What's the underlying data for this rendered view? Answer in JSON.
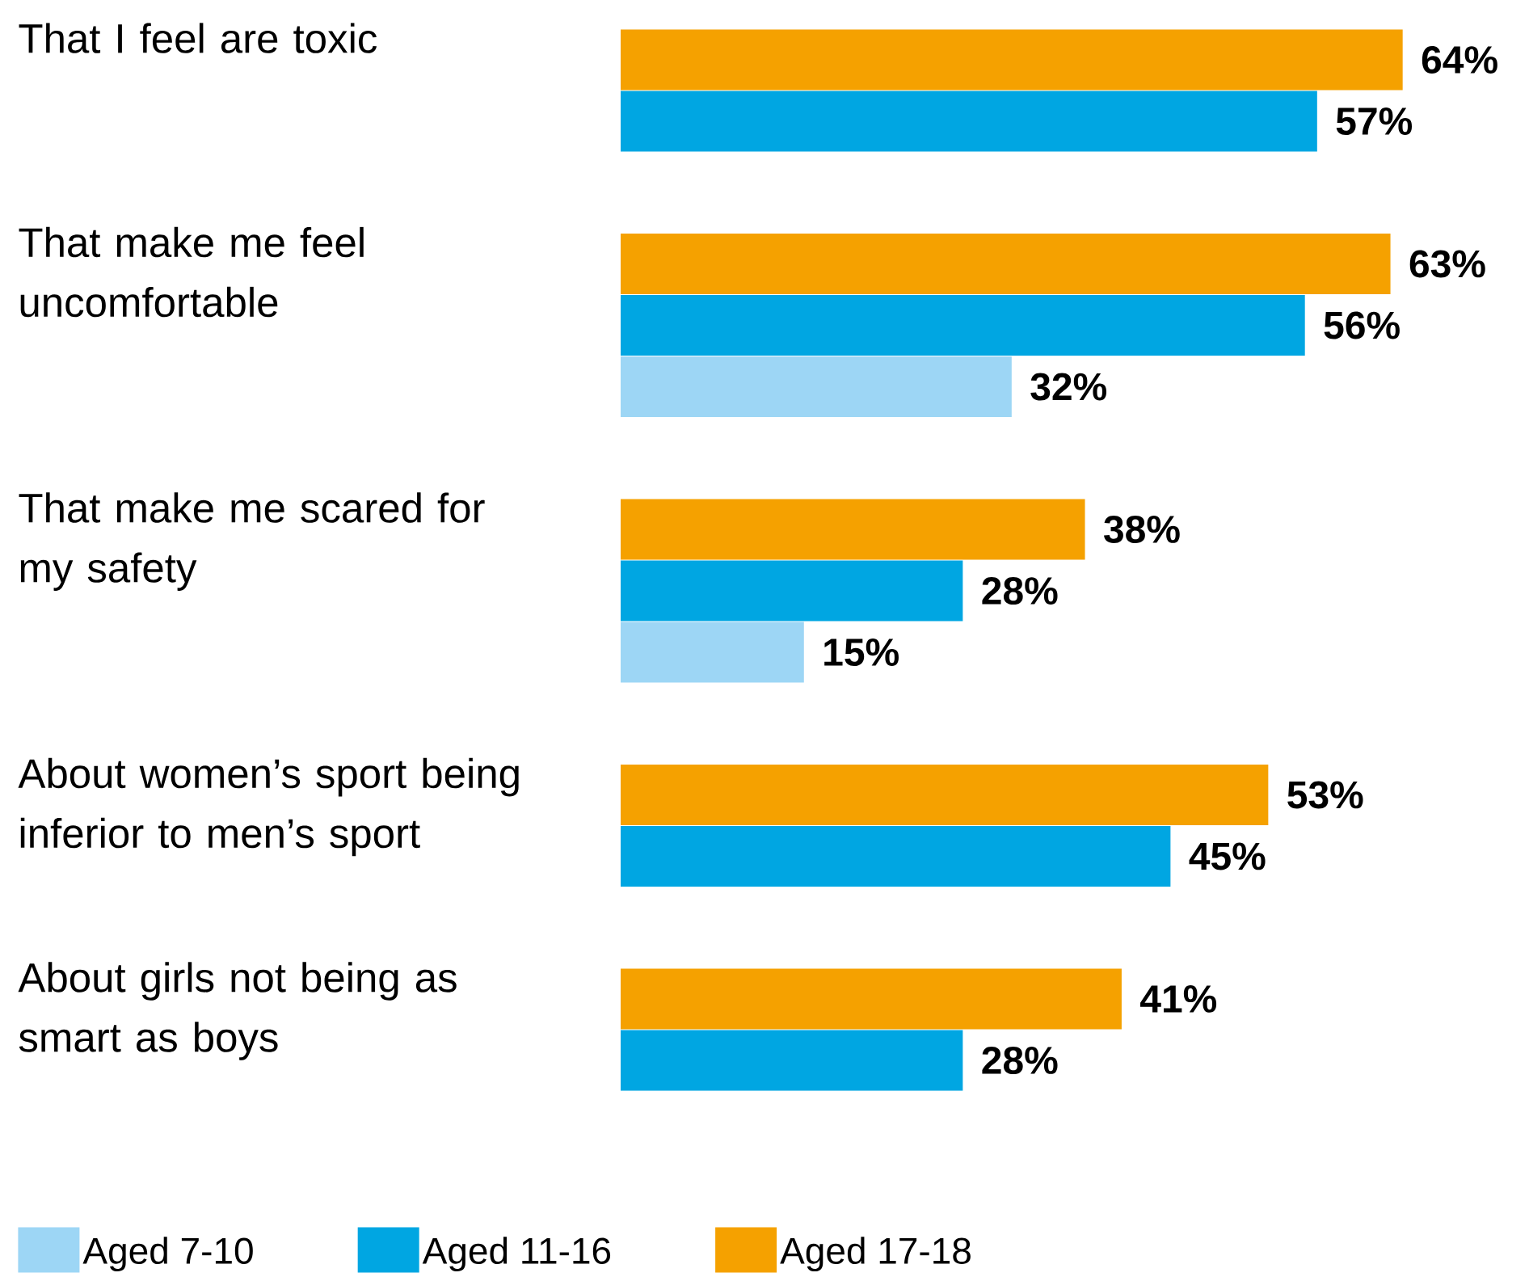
{
  "chart_data": {
    "type": "bar",
    "orientation": "horizontal",
    "categories": [
      "That I feel are toxic",
      "That make me feel uncomfortable",
      "That make me scared for my safety",
      "About women’s sport being inferior to men’s sport",
      "About girls not being as smart as boys"
    ],
    "series": [
      {
        "name": "Aged 7-10",
        "color": "#9dd6f5",
        "values": [
          null,
          32,
          15,
          null,
          null
        ],
        "value_labels": [
          null,
          "32%",
          "15%",
          null,
          null
        ]
      },
      {
        "name": "Aged 11-16",
        "color": "#00a6e2",
        "values": [
          57,
          56,
          28,
          45,
          28
        ],
        "value_labels": [
          "57%",
          "56%",
          "28%",
          "45%",
          "28%"
        ]
      },
      {
        "name": "Aged 17-18",
        "color": "#f5a100",
        "values": [
          64,
          63,
          38,
          53,
          41
        ],
        "value_labels": [
          "64%",
          "63%",
          "38%",
          "53%",
          "41%"
        ]
      }
    ],
    "legend": "bottom"
  }
}
